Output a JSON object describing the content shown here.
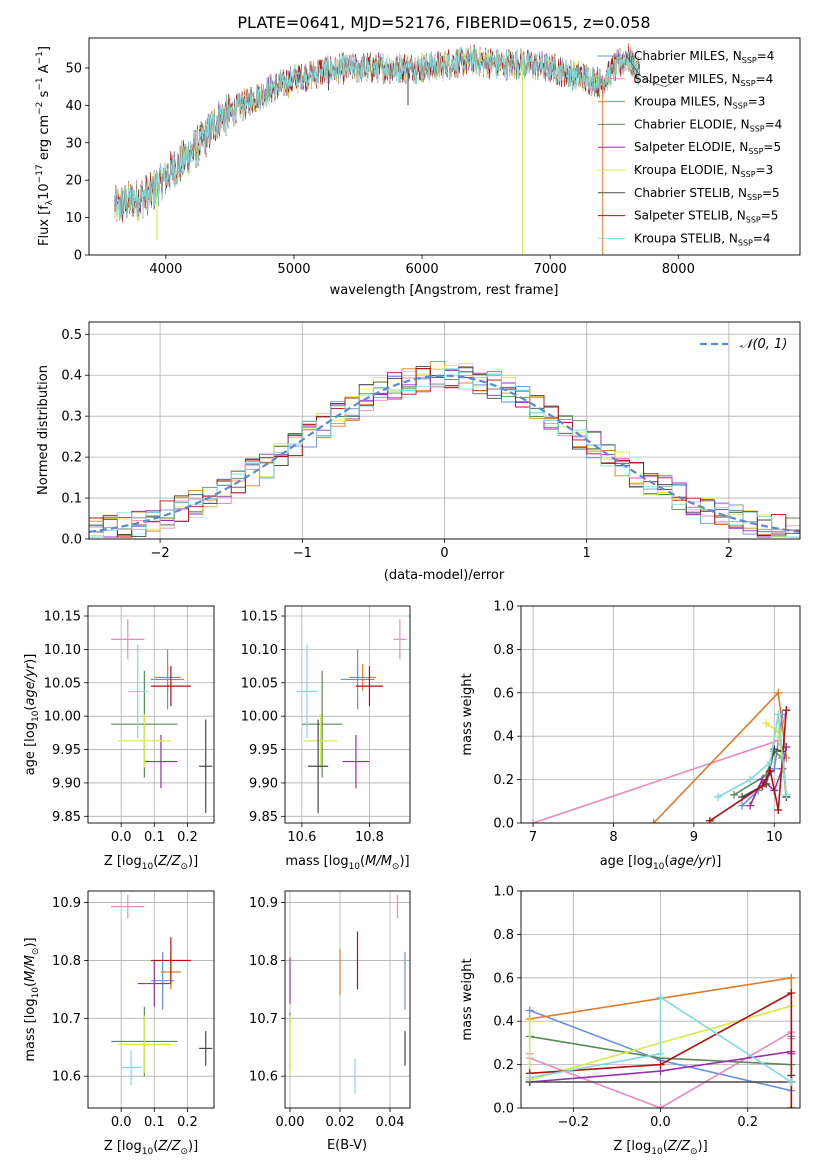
{
  "figure": {
    "title": "PLATE=0641, MJD=52176, FIBERID=0615, z=0.058"
  },
  "models": [
    {
      "name": "Chabrier MILES, N_SSP=4",
      "base": "Chabrier MILES, N",
      "sub": "SSP",
      "tail": "=4",
      "color": "#6b8fe0"
    },
    {
      "name": "Salpeter MILES, N_SSP=4",
      "base": "Salpeter MILES, N",
      "sub": "SSP",
      "tail": "=4",
      "color": "#e88bbf"
    },
    {
      "name": "Kroupa MILES, N_SSP=3",
      "base": "Kroupa MILES, N",
      "sub": "SSP",
      "tail": "=3",
      "color": "#e07b28"
    },
    {
      "name": "Chabrier ELODIE, N_SSP=4",
      "base": "Chabrier ELODIE, N",
      "sub": "SSP",
      "tail": "=4",
      "color": "#5a8a5a"
    },
    {
      "name": "Salpeter ELODIE, N_SSP=5",
      "base": "Salpeter ELODIE, N",
      "sub": "SSP",
      "tail": "=5",
      "color": "#9a2fb0"
    },
    {
      "name": "Kroupa ELODIE, N_SSP=3",
      "base": "Kroupa ELODIE, N",
      "sub": "SSP",
      "tail": "=3",
      "color": "#d6ea4a"
    },
    {
      "name": "Chabrier STELIB, N_SSP=5",
      "base": "Chabrier STELIB, N",
      "sub": "SSP",
      "tail": "=5",
      "color": "#4a4a4a"
    },
    {
      "name": "Salpeter STELIB, N_SSP=5",
      "base": "Salpeter STELIB, N",
      "sub": "SSP",
      "tail": "=5",
      "color": "#b01010"
    },
    {
      "name": "Kroupa STELIB, N_SSP=4",
      "base": "Kroupa STELIB, N",
      "sub": "SSP",
      "tail": "=4",
      "color": "#7fdada"
    }
  ],
  "chart_data": [
    {
      "id": "spectrum",
      "type": "line",
      "xlabel": "wavelength [Angstrom, rest frame]",
      "ylabel": "Flux [f_λ 10^-17 erg cm^-2 s^-1 A^-1]",
      "xlim": [
        3400,
        8950
      ],
      "ylim": [
        0,
        58
      ],
      "xticks": [
        4000,
        5000,
        6000,
        7000,
        8000
      ],
      "yticks": [
        0,
        10,
        20,
        30,
        40,
        50
      ],
      "grid": false,
      "legend": "right",
      "continuum": {
        "x": [
          3600,
          3800,
          3900,
          4000,
          4100,
          4300,
          4400,
          4600,
          4800,
          5000,
          5200,
          5400,
          5600,
          5800,
          6000,
          6200,
          6400,
          6600,
          6800,
          7000,
          7200,
          7400,
          7500,
          7600,
          7700,
          7800,
          7900,
          8000
        ],
        "y": [
          13,
          15,
          17,
          21,
          24,
          31,
          36,
          40,
          44,
          47,
          49,
          50,
          50,
          50,
          50,
          51,
          52,
          51,
          51,
          50,
          48,
          46,
          50,
          53,
          48,
          46,
          45,
          47
        ]
      },
      "dips": [
        {
          "x": 5270,
          "y": 44
        },
        {
          "x": 5890,
          "y": 40
        },
        {
          "x": 6785,
          "y": 0
        },
        {
          "x": 7410,
          "y": 0
        },
        {
          "x": 3930,
          "y": 4
        }
      ]
    },
    {
      "id": "residuals",
      "type": "step",
      "xlabel": "(data-model)/error",
      "ylabel": "Normed distribution",
      "xlim": [
        -2.5,
        2.5
      ],
      "ylim": [
        0,
        0.53
      ],
      "xticks": [
        -2,
        -1,
        0,
        1,
        2
      ],
      "yticks": [
        0.0,
        0.1,
        0.2,
        0.3,
        0.4,
        0.5
      ],
      "grid": true,
      "legend": "top-right",
      "reference": {
        "name": "𝒩(0, 1)",
        "mean": 0,
        "sigma": 1,
        "color": "#5a8ad8"
      },
      "bin_width": 0.1
    },
    {
      "id": "age_vs_Z",
      "type": "errorbar",
      "xlabel": "Z [log10(Z/Z⊙)]",
      "ylabel": "age  [log10(age/yr)]",
      "xlim": [
        -0.1,
        0.28
      ],
      "ylim": [
        9.84,
        10.165
      ],
      "xticks": [
        0.0,
        0.1,
        0.2
      ],
      "yticks": [
        9.85,
        9.9,
        9.95,
        10.0,
        10.05,
        10.1,
        10.15
      ],
      "grid": true,
      "points": [
        {
          "x": 0.14,
          "xe": 0.05,
          "y": 10.055,
          "ye": 0.045
        },
        {
          "x": 0.02,
          "xe": 0.05,
          "y": 10.115,
          "ye": 0.03
        },
        {
          "x": 0.14,
          "xe": 0.04,
          "y": 10.058,
          "ye": 0.02
        },
        {
          "x": 0.07,
          "xe": 0.1,
          "y": 9.988,
          "ye": 0.08
        },
        {
          "x": 0.12,
          "xe": 0.05,
          "y": 9.932,
          "ye": 0.04
        },
        {
          "x": 0.07,
          "xe": 0.08,
          "y": 9.963,
          "ye": 0.04
        },
        {
          "x": 0.255,
          "xe": 0.02,
          "y": 9.925,
          "ye": 0.07
        },
        {
          "x": 0.15,
          "xe": 0.06,
          "y": 10.045,
          "ye": 0.03
        },
        {
          "x": 0.05,
          "xe": 0.03,
          "y": 10.037,
          "ye": 0.07
        }
      ]
    },
    {
      "id": "age_vs_mass",
      "type": "errorbar",
      "xlabel": "mass [log10(M/M⊙)]",
      "ylabel": "",
      "xlim": [
        10.55,
        10.92
      ],
      "ylim": [
        9.84,
        10.165
      ],
      "xticks": [
        10.6,
        10.8
      ],
      "yticks": [
        9.85,
        9.9,
        9.95,
        10.0,
        10.05,
        10.1,
        10.15
      ],
      "grid": true,
      "points": [
        {
          "x": 10.765,
          "xe": 0.05,
          "y": 10.055,
          "ye": 0.045
        },
        {
          "x": 10.89,
          "xe": 0.02,
          "y": 10.115,
          "ye": 0.03
        },
        {
          "x": 10.78,
          "xe": 0.04,
          "y": 10.058,
          "ye": 0.02
        },
        {
          "x": 10.66,
          "xe": 0.06,
          "y": 9.988,
          "ye": 0.08
        },
        {
          "x": 10.76,
          "xe": 0.04,
          "y": 9.932,
          "ye": 0.04
        },
        {
          "x": 10.655,
          "xe": 0.05,
          "y": 9.963,
          "ye": 0.04
        },
        {
          "x": 10.648,
          "xe": 0.03,
          "y": 9.925,
          "ye": 0.07
        },
        {
          "x": 10.8,
          "xe": 0.04,
          "y": 10.045,
          "ye": 0.03
        },
        {
          "x": 10.615,
          "xe": 0.03,
          "y": 10.037,
          "ye": 0.07
        }
      ]
    },
    {
      "id": "weight_vs_age",
      "type": "line",
      "xlabel": "age  [log10(age/yr)]",
      "ylabel": "mass weight",
      "xlim": [
        6.85,
        10.32
      ],
      "ylim": [
        0,
        1
      ],
      "xticks": [
        7,
        8,
        9,
        10
      ],
      "yticks": [
        0.0,
        0.2,
        0.4,
        0.6,
        0.8,
        1.0
      ],
      "grid": true,
      "series": [
        {
          "x": [
            9.6,
            9.8,
            10.0,
            10.1
          ],
          "y": [
            0.08,
            0.15,
            0.25,
            0.5
          ]
        },
        {
          "x": [
            7.0,
            10.05,
            10.15
          ],
          "y": [
            0.0,
            0.38,
            0.52
          ]
        },
        {
          "x": [
            8.5,
            10.05,
            10.15
          ],
          "y": [
            0.0,
            0.6,
            0.3
          ]
        },
        {
          "x": [
            9.5,
            9.9,
            10.0,
            10.1
          ],
          "y": [
            0.13,
            0.22,
            0.33,
            0.3
          ]
        },
        {
          "x": [
            9.7,
            9.85,
            10.0,
            10.1,
            10.15
          ],
          "y": [
            0.08,
            0.2,
            0.15,
            0.25,
            0.35
          ]
        },
        {
          "x": [
            9.9,
            10.05,
            10.15
          ],
          "y": [
            0.46,
            0.42,
            0.12
          ]
        },
        {
          "x": [
            9.6,
            9.9,
            10.0,
            10.1,
            10.15
          ],
          "y": [
            0.12,
            0.18,
            0.34,
            0.33,
            0.12
          ]
        },
        {
          "x": [
            9.2,
            9.85,
            9.95,
            10.05,
            10.15
          ],
          "y": [
            0.01,
            0.17,
            0.24,
            0.06,
            0.52
          ]
        },
        {
          "x": [
            9.3,
            9.7,
            9.95,
            10.05,
            10.15
          ],
          "y": [
            0.12,
            0.2,
            0.28,
            0.5,
            0.13
          ]
        }
      ]
    },
    {
      "id": "mass_vs_Z",
      "type": "errorbar",
      "xlabel": "Z [log10(Z/Z⊙)]",
      "ylabel": "mass [log10(M/M⊙)]",
      "xlim": [
        -0.1,
        0.28
      ],
      "ylim": [
        10.545,
        10.92
      ],
      "xticks": [
        0.0,
        0.1,
        0.2
      ],
      "yticks": [
        10.6,
        10.7,
        10.8,
        10.9
      ],
      "grid": true,
      "points": [
        {
          "x": 0.125,
          "xe": 0.035,
          "y": 10.765,
          "ye": 0.05
        },
        {
          "x": 0.02,
          "xe": 0.05,
          "y": 10.893,
          "ye": 0.02
        },
        {
          "x": 0.15,
          "xe": 0.03,
          "y": 10.78,
          "ye": 0.03
        },
        {
          "x": 0.07,
          "xe": 0.1,
          "y": 10.66,
          "ye": 0.06
        },
        {
          "x": 0.1,
          "xe": 0.05,
          "y": 10.76,
          "ye": 0.04
        },
        {
          "x": 0.07,
          "xe": 0.08,
          "y": 10.655,
          "ye": 0.05
        },
        {
          "x": 0.255,
          "xe": 0.02,
          "y": 10.648,
          "ye": 0.03
        },
        {
          "x": 0.15,
          "xe": 0.06,
          "y": 10.8,
          "ye": 0.04
        },
        {
          "x": 0.03,
          "xe": 0.03,
          "y": 10.615,
          "ye": 0.03
        }
      ]
    },
    {
      "id": "mass_vs_EBV",
      "type": "errorbar",
      "xlabel": "E(B-V)",
      "ylabel": "",
      "xlim": [
        -0.002,
        0.048
      ],
      "ylim": [
        10.545,
        10.92
      ],
      "xticks": [
        0.0,
        0.02,
        0.04
      ],
      "yticks": [
        10.6,
        10.7,
        10.8,
        10.9
      ],
      "grid": true,
      "points": [
        {
          "x": 0.046,
          "xe": 0,
          "y": 10.765,
          "ye": 0.05
        },
        {
          "x": 0.043,
          "xe": 0,
          "y": 10.893,
          "ye": 0.02
        },
        {
          "x": 0.02,
          "xe": 0,
          "y": 10.78,
          "ye": 0.04
        },
        {
          "x": 0.0,
          "xe": 0,
          "y": 10.66,
          "ye": 0.05
        },
        {
          "x": 0.0,
          "xe": 0,
          "y": 10.765,
          "ye": 0.04
        },
        {
          "x": 0.0,
          "xe": 0,
          "y": 10.655,
          "ye": 0.05
        },
        {
          "x": 0.046,
          "xe": 0,
          "y": 10.648,
          "ye": 0.03
        },
        {
          "x": 0.027,
          "xe": 0,
          "y": 10.8,
          "ye": 0.05
        },
        {
          "x": 0.026,
          "xe": 0,
          "y": 10.6,
          "ye": 0.03
        }
      ]
    },
    {
      "id": "weight_vs_Z",
      "type": "line",
      "xlabel": "Z [log10(Z/Z⊙)]",
      "ylabel": "mass weight",
      "xlim": [
        -0.32,
        0.32
      ],
      "ylim": [
        0,
        1
      ],
      "xticks": [
        -0.2,
        0.0,
        0.2
      ],
      "yticks": [
        0.0,
        0.2,
        0.4,
        0.6,
        0.8,
        1.0
      ],
      "grid": true,
      "series": [
        {
          "x": [
            -0.3,
            0.0,
            0.3,
            0.3
          ],
          "y": [
            0.45,
            0.22,
            0.08,
            0.33
          ]
        },
        {
          "x": [
            -0.3,
            -0.3,
            0.0,
            0.3,
            0.3
          ],
          "y": [
            0.25,
            0.23,
            0.0,
            0.35,
            0.32
          ]
        },
        {
          "x": [
            -0.3,
            0.3,
            0.3
          ],
          "y": [
            0.41,
            0.6,
            0.0
          ]
        },
        {
          "x": [
            -0.3,
            0.0,
            0.3,
            0.3
          ],
          "y": [
            0.33,
            0.23,
            0.2,
            0.12
          ]
        },
        {
          "x": [
            -0.3,
            0.0,
            0.3,
            0.3
          ],
          "y": [
            0.12,
            0.17,
            0.26,
            0.25
          ]
        },
        {
          "x": [
            -0.3,
            -0.3,
            0.3
          ],
          "y": [
            0.4,
            0.13,
            0.47
          ]
        },
        {
          "x": [
            -0.3,
            0.3,
            0.3
          ],
          "y": [
            0.12,
            0.12,
            0.15
          ]
        },
        {
          "x": [
            -0.3,
            0.0,
            0.3,
            0.3
          ],
          "y": [
            0.16,
            0.2,
            0.53,
            0.0
          ]
        },
        {
          "x": [
            -0.3,
            0.0,
            0.0,
            0.3
          ],
          "y": [
            0.14,
            0.25,
            0.51,
            0.12
          ]
        }
      ]
    }
  ]
}
